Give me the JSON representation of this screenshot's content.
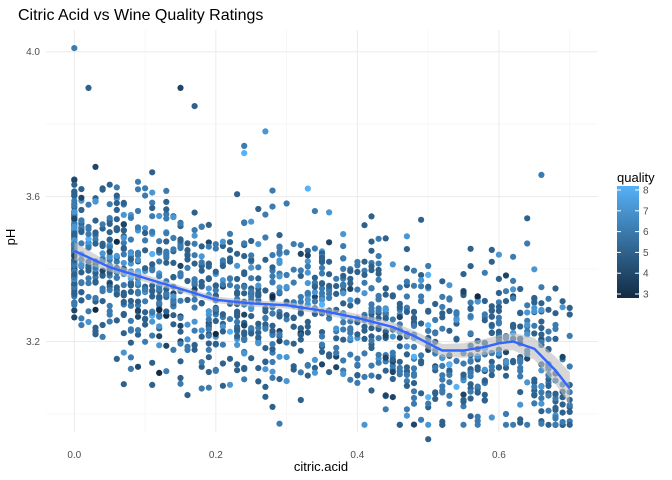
{
  "chart_data": {
    "type": "scatter",
    "title": "Citric Acid vs Wine Quality Ratings",
    "xlabel": "citric.acid",
    "ylabel": "pH",
    "xlim": [
      -0.04,
      0.74
    ],
    "ylim": [
      2.95,
      4.06
    ],
    "x_ticks": [
      0.0,
      0.2,
      0.4,
      0.6
    ],
    "y_ticks": [
      3.2,
      3.6,
      4.0
    ],
    "x_tick_labels": [
      "0.0",
      "0.2",
      "0.4",
      "0.6"
    ],
    "y_tick_labels": [
      "3.2",
      "3.6",
      "4.0"
    ],
    "grid": true,
    "color_scale": {
      "title": "quality",
      "min": 3,
      "max": 8,
      "low_color": "#132B43",
      "high_color": "#56B1F7",
      "ticks": [
        3,
        4,
        5,
        6,
        7,
        8
      ],
      "placement": "right"
    },
    "smooth": {
      "color": "#3366FF",
      "band_color": "#bdbdbd",
      "x": [
        0.0,
        0.05,
        0.1,
        0.15,
        0.2,
        0.25,
        0.3,
        0.35,
        0.4,
        0.45,
        0.48,
        0.5,
        0.52,
        0.55,
        0.58,
        0.6,
        0.62,
        0.65,
        0.68,
        0.7
      ],
      "y": [
        3.45,
        3.405,
        3.375,
        3.345,
        3.315,
        3.305,
        3.3,
        3.285,
        3.265,
        3.24,
        3.215,
        3.195,
        3.175,
        3.175,
        3.185,
        3.195,
        3.2,
        3.18,
        3.12,
        3.07
      ],
      "band_halfwidth": [
        0.025,
        0.012,
        0.01,
        0.009,
        0.009,
        0.009,
        0.009,
        0.01,
        0.011,
        0.013,
        0.015,
        0.016,
        0.018,
        0.02,
        0.022,
        0.022,
        0.024,
        0.03,
        0.038,
        0.045
      ]
    },
    "notable_points": [
      {
        "x": 0.0,
        "y": 4.01,
        "quality": 6
      },
      {
        "x": 0.02,
        "y": 3.9,
        "quality": 5
      },
      {
        "x": 0.15,
        "y": 3.9,
        "quality": 4
      },
      {
        "x": 0.17,
        "y": 3.85,
        "quality": 5
      },
      {
        "x": 0.27,
        "y": 3.78,
        "quality": 7
      },
      {
        "x": 0.24,
        "y": 3.74,
        "quality": 6
      },
      {
        "x": 0.24,
        "y": 3.72,
        "quality": 8
      },
      {
        "x": 0.66,
        "y": 3.66,
        "quality": 6
      },
      {
        "x": 0.64,
        "y": 3.54,
        "quality": 5
      },
      {
        "x": 0.11,
        "y": 3.08,
        "quality": 5
      },
      {
        "x": 0.18,
        "y": 3.07,
        "quality": 6
      },
      {
        "x": 0.59,
        "y": 2.99,
        "quality": 7
      },
      {
        "x": 0.68,
        "y": 2.99,
        "quality": 6
      },
      {
        "x": 0.5,
        "y": 2.93,
        "quality": 5
      },
      {
        "x": 0.7,
        "y": 3.08,
        "quality": 5
      }
    ],
    "cloud": {
      "count": 1500,
      "x_range": [
        0.0,
        0.7
      ],
      "trend": "smooth",
      "y_spread": 0.12,
      "quality_weights": {
        "3": 0.01,
        "4": 0.04,
        "5": 0.42,
        "6": 0.4,
        "7": 0.12,
        "8": 0.01
      }
    }
  }
}
